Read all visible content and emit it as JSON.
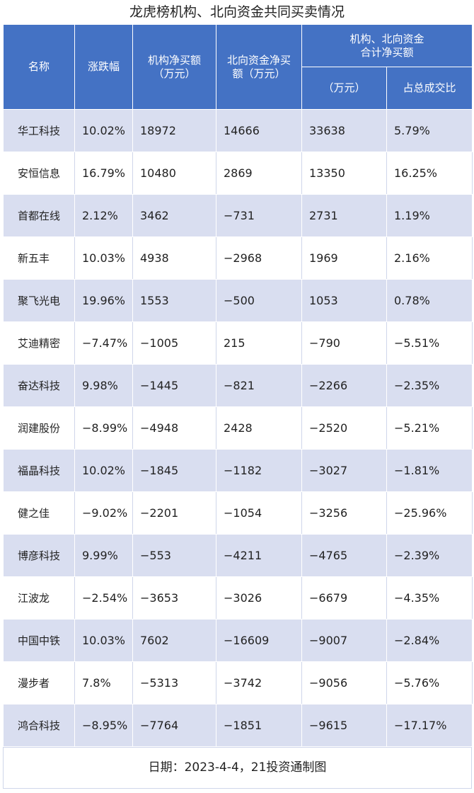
{
  "title": "龙虎榜机构、北向资金共同买卖情况",
  "headers": {
    "name": "名称",
    "change": "涨跌幅",
    "inst_line1": "机构净买额",
    "inst_line2": "（万元）",
    "north_line1": "北向资金净买",
    "north_line2": "额（万元）",
    "combined_line1": "机构、北向资金",
    "combined_line2": "合计净买额",
    "combined_unit": "（万元）",
    "share": "占总成交比"
  },
  "rows": [
    {
      "name": "华工科技",
      "change": "10.02%",
      "inst": "18972",
      "north": "14666",
      "combined": "33638",
      "share": "5.79%"
    },
    {
      "name": "安恒信息",
      "change": "16.79%",
      "inst": "10480",
      "north": "2869",
      "combined": "13350",
      "share": "16.25%"
    },
    {
      "name": "首都在线",
      "change": "2.12%",
      "inst": "3462",
      "north": "−731",
      "combined": "2731",
      "share": "1.19%"
    },
    {
      "name": "新五丰",
      "change": "10.03%",
      "inst": "4938",
      "north": "−2968",
      "combined": "1969",
      "share": "2.16%"
    },
    {
      "name": "聚飞光电",
      "change": "19.96%",
      "inst": "1553",
      "north": "−500",
      "combined": "1053",
      "share": "0.78%"
    },
    {
      "name": "艾迪精密",
      "change": "−7.47%",
      "inst": "−1005",
      "north": "215",
      "combined": "−790",
      "share": "−5.51%"
    },
    {
      "name": "奋达科技",
      "change": "9.98%",
      "inst": "−1445",
      "north": "−821",
      "combined": "−2266",
      "share": "−2.35%"
    },
    {
      "name": "润建股份",
      "change": "−8.99%",
      "inst": "−4948",
      "north": "2428",
      "combined": "−2520",
      "share": "−5.21%"
    },
    {
      "name": "福晶科技",
      "change": "10.02%",
      "inst": "−1845",
      "north": "−1182",
      "combined": "−3027",
      "share": "−1.81%"
    },
    {
      "name": "健之佳",
      "change": "−9.02%",
      "inst": "−2201",
      "north": "−1054",
      "combined": "−3256",
      "share": "−25.96%"
    },
    {
      "name": "博彦科技",
      "change": "9.99%",
      "inst": "−553",
      "north": "−4211",
      "combined": "−4765",
      "share": "−2.39%"
    },
    {
      "name": "江波龙",
      "change": "−2.54%",
      "inst": "−3653",
      "north": "−3026",
      "combined": "−6679",
      "share": "−4.35%"
    },
    {
      "name": "中国中铁",
      "change": "10.03%",
      "inst": "7602",
      "north": "−16609",
      "combined": "−9007",
      "share": "−2.84%"
    },
    {
      "name": "漫步者",
      "change": "7.8%",
      "inst": "−5313",
      "north": "−3742",
      "combined": "−9056",
      "share": "−5.76%"
    },
    {
      "name": "鸿合科技",
      "change": "−8.95%",
      "inst": "−7764",
      "north": "−1851",
      "combined": "−9615",
      "share": "−17.17%"
    }
  ],
  "footer": "日期：2023-4-4，21投资通制图",
  "colors": {
    "header_bg": "#4472c4",
    "stripe": "#d9def0",
    "header_text": "#ffffff"
  }
}
